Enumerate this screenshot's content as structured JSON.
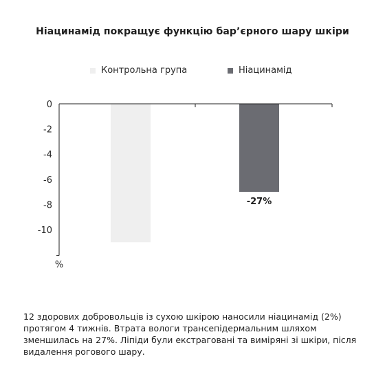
{
  "chart_data": {
    "type": "bar",
    "title": "Ніацинамід покращує функцію бар’єрного шару шкіри",
    "categories": [
      "",
      ""
    ],
    "series": [
      {
        "name": "Контрольна група",
        "values": [
          -11,
          null
        ],
        "color": "#efefef",
        "data_label": ""
      },
      {
        "name": "Ніацинамід",
        "values": [
          null,
          -7
        ],
        "color": "#6b6c72",
        "data_label": "-27%"
      }
    ],
    "yticks": [
      "0",
      "-2",
      "-4",
      "-6",
      "-8",
      "-10"
    ],
    "ylim": [
      -12,
      0
    ],
    "ylabel": "%",
    "legend_position": "top",
    "grid": false
  },
  "footnote": "12 здорових добровольців із сухою шкірою наносили ніацинамід (2%) протягом 4 тижнів. Втрата вологи трансепідермальним шляхом зменшилась на 27%. Ліпіди були екстраговані та виміряні зі шкіри, після видалення рогового шару."
}
